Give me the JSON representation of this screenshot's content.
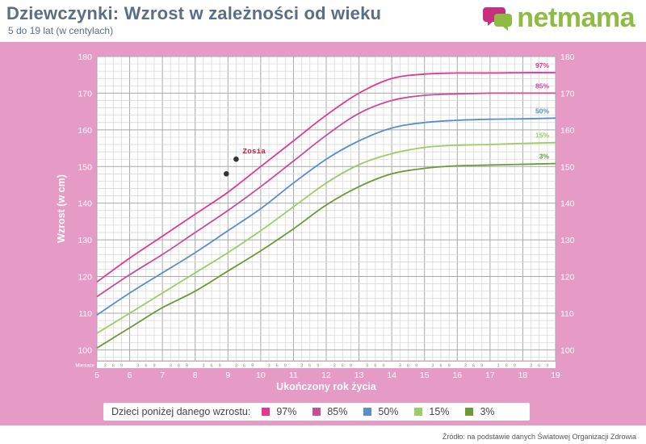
{
  "header": {
    "title": "Dziewczynki: Wzrost w zależności od wieku",
    "subtitle": "5 do 19 lat (w centylach)"
  },
  "logo": {
    "text": "netmama",
    "icon": "speech-bubbles-icon"
  },
  "source": "Źródło: na podstawie danych Światowej Organizacji Zdrowia",
  "legend": {
    "label": "Dzieci poniżej danego wzrostu:"
  },
  "chart_data": {
    "type": "line",
    "xlabel": "Ukończony rok życia",
    "ylabel": "Wzrost (w cm)",
    "months_label": "Miesiace",
    "xlim": [
      5,
      19
    ],
    "ylim": [
      97,
      180
    ],
    "x_ticks": [
      5,
      6,
      7,
      8,
      9,
      10,
      11,
      12,
      13,
      14,
      15,
      16,
      17,
      18,
      19
    ],
    "y_ticks": [
      100,
      110,
      120,
      130,
      140,
      150,
      160,
      170,
      180
    ],
    "month_ticks": [
      "3",
      "6",
      "9"
    ],
    "grid": true,
    "x": [
      5,
      6,
      7,
      8,
      9,
      10,
      11,
      12,
      13,
      14,
      15,
      16,
      17,
      18,
      19
    ],
    "series": [
      {
        "name": "97%",
        "color": "#e2388f",
        "values": [
          118.5,
          125,
          131,
          137,
          143,
          150,
          157,
          164,
          170,
          174,
          175.2,
          175.5,
          175.5,
          175.6,
          175.6
        ]
      },
      {
        "name": "85%",
        "color": "#c84c9c",
        "values": [
          114.5,
          120.5,
          126,
          132,
          138,
          144.5,
          151.5,
          158.5,
          164.5,
          168,
          169.4,
          169.8,
          170,
          170,
          170
        ]
      },
      {
        "name": "50%",
        "color": "#5a8ec9",
        "values": [
          109.5,
          115.5,
          121,
          126.5,
          132.5,
          138.5,
          145.5,
          152,
          157,
          160.5,
          162,
          162.6,
          162.9,
          163,
          163.2
        ]
      },
      {
        "name": "15%",
        "color": "#9ccc65",
        "values": [
          104.5,
          110,
          115.5,
          121,
          126.5,
          132.5,
          139,
          145.5,
          150.5,
          153.5,
          155.2,
          155.8,
          156,
          156.3,
          156.5
        ]
      },
      {
        "name": "3%",
        "color": "#6c9a36",
        "values": [
          100.5,
          106,
          111.5,
          116,
          121.5,
          127,
          133,
          139.5,
          144.5,
          148,
          149.5,
          150.2,
          150.4,
          150.6,
          150.8
        ]
      }
    ],
    "annotation": {
      "label": "Zosia",
      "points": [
        [
          8.95,
          148
        ],
        [
          9.25,
          152
        ]
      ]
    }
  }
}
